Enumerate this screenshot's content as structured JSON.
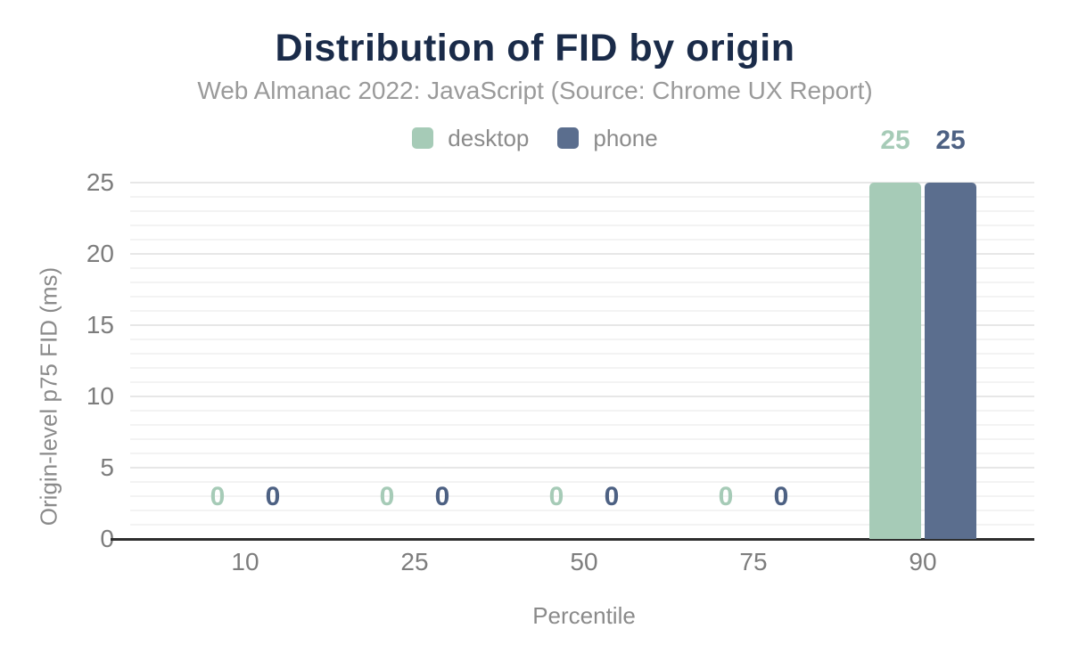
{
  "chart_data": {
    "type": "bar",
    "title": "Distribution of FID by origin",
    "subtitle": "Web Almanac 2022: JavaScript (Source: Chrome UX Report)",
    "xlabel": "Percentile",
    "ylabel": "Origin-level p75 FID (ms)",
    "categories": [
      "10",
      "25",
      "50",
      "75",
      "90"
    ],
    "series": [
      {
        "name": "desktop",
        "color": "#a6cbb7",
        "label_color": "#a6cbb7",
        "values": [
          0,
          0,
          0,
          0,
          25
        ]
      },
      {
        "name": "phone",
        "color": "#5b6e8e",
        "label_color": "#4d6183",
        "values": [
          0,
          0,
          0,
          0,
          25
        ]
      }
    ],
    "ylim": [
      0,
      25
    ],
    "yticks": [
      0,
      5,
      10,
      15,
      20,
      25
    ],
    "grid": {
      "orientation": "horizontal",
      "minor_step": 1,
      "major_step": 5,
      "on": true
    },
    "legend_position": "top",
    "value_labels_shown": true
  },
  "colors": {
    "title": "#1a2b49",
    "subtitle": "#9a9a9a",
    "tick_text": "#7d7d7d",
    "legend_text": "#8b8b8b",
    "axis_line": "#2e2e2e",
    "grid_minor": "#f3f3f3",
    "grid_major": "#e7e7e7",
    "background": "#ffffff"
  }
}
